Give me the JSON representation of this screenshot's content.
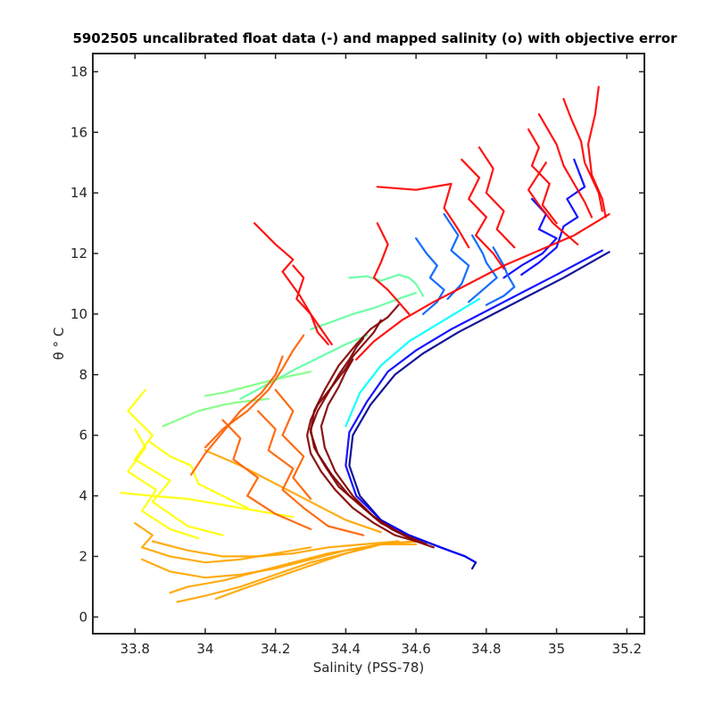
{
  "chart_data": {
    "type": "line",
    "title": "5902505 uncalibrated float data (-) and mapped salinity (o) with objective error",
    "xlabel": "Salinity (PSS-78)",
    "ylabel": "θ ° C",
    "xlim": [
      33.68,
      35.25
    ],
    "ylim": [
      -0.55,
      18.6
    ],
    "xticks": [
      33.8,
      34,
      34.2,
      34.4,
      34.6,
      34.8,
      35,
      35.2
    ],
    "xtick_labels": [
      "33.8",
      "34",
      "34.2",
      "34.4",
      "34.6",
      "34.8",
      "35",
      "35.2"
    ],
    "yticks": [
      0,
      2,
      4,
      6,
      8,
      10,
      12,
      14,
      16,
      18
    ],
    "ytick_labels": [
      "0",
      "2",
      "4",
      "6",
      "8",
      "10",
      "12",
      "14",
      "16",
      "18"
    ],
    "grid": false,
    "colormap": "jet",
    "colors": {
      "dark_blue": "#00008f",
      "blue": "#0000ff",
      "mid_blue": "#0060ff",
      "cyan": "#00ffff",
      "light_green": "#60ff9f",
      "green": "#7fff7f",
      "yellow": "#ffff00",
      "orange": "#ffa500",
      "dark_orange": "#ff6000",
      "red": "#ff0000",
      "dark_red": "#800000"
    },
    "series": [
      {
        "color": "#00008f",
        "x": [
          35.15,
          35.02,
          34.92,
          34.82,
          34.72,
          34.62,
          34.54,
          34.47,
          34.42,
          34.41,
          34.44,
          34.5,
          34.58,
          34.67,
          34.74,
          34.77,
          34.76
        ],
        "y": [
          12.05,
          11.2,
          10.6,
          10.0,
          9.4,
          8.7,
          8.0,
          7.0,
          6.0,
          5.0,
          4.0,
          3.2,
          2.7,
          2.3,
          2.0,
          1.8,
          1.6
        ]
      },
      {
        "color": "#0000ff",
        "x": [
          35.13,
          35.0,
          34.9,
          34.8,
          34.7,
          34.6,
          34.52,
          34.46,
          34.41,
          34.4,
          34.43,
          34.5,
          34.58,
          34.67,
          34.74,
          34.77
        ],
        "y": [
          12.1,
          11.3,
          10.7,
          10.1,
          9.5,
          8.8,
          8.1,
          7.1,
          6.1,
          5.0,
          4.0,
          3.2,
          2.7,
          2.3,
          2.0,
          1.8
        ]
      },
      {
        "color": "#0000ff",
        "x": [
          35.05,
          35.08,
          35.03,
          35.06,
          35.02,
          35.0,
          34.95,
          34.9
        ],
        "y": [
          15.1,
          14.2,
          13.8,
          13.2,
          12.9,
          12.2,
          11.7,
          11.3
        ]
      },
      {
        "color": "#0000ff",
        "x": [
          34.93,
          34.97,
          34.95,
          35.0,
          34.96,
          34.9,
          34.85
        ],
        "y": [
          13.8,
          13.3,
          12.8,
          12.5,
          12.0,
          11.6,
          11.2
        ]
      },
      {
        "color": "#0060ff",
        "x": [
          34.6,
          34.63,
          34.66,
          34.64,
          34.68,
          34.66,
          34.62
        ],
        "y": [
          12.5,
          12.0,
          11.6,
          11.2,
          10.8,
          10.4,
          10.0
        ]
      },
      {
        "color": "#0060ff",
        "x": [
          34.68,
          34.72,
          34.7,
          34.75,
          34.73,
          34.69
        ],
        "y": [
          13.3,
          12.6,
          12.1,
          11.6,
          11.0,
          10.5
        ]
      },
      {
        "color": "#0060ff",
        "x": [
          34.76,
          34.79,
          34.8,
          34.83,
          34.79,
          34.75
        ],
        "y": [
          12.6,
          12.0,
          11.7,
          11.2,
          10.8,
          10.4
        ]
      },
      {
        "color": "#0060ff",
        "x": [
          34.82,
          34.85,
          34.86,
          34.88,
          34.85,
          34.8
        ],
        "y": [
          12.2,
          11.6,
          11.3,
          10.9,
          10.6,
          10.3
        ]
      },
      {
        "color": "#00ffff",
        "x": [
          34.78,
          34.68,
          34.58,
          34.5,
          34.44,
          34.4
        ],
        "y": [
          10.5,
          9.8,
          9.1,
          8.3,
          7.4,
          6.3
        ]
      },
      {
        "color": "#60ff9f",
        "x": [
          34.41,
          34.46,
          34.5,
          34.55,
          34.58,
          34.6,
          34.62
        ],
        "y": [
          11.2,
          11.25,
          11.1,
          11.3,
          11.2,
          11.0,
          10.6
        ]
      },
      {
        "color": "#60ff9f",
        "x": [
          34.1,
          34.18,
          34.26,
          34.33,
          34.4,
          34.46
        ],
        "y": [
          7.2,
          7.7,
          8.2,
          8.6,
          9.0,
          9.3
        ]
      },
      {
        "color": "#60ff9f",
        "x": [
          34.3,
          34.35,
          34.42,
          34.48,
          34.55,
          34.6
        ],
        "y": [
          9.5,
          9.7,
          10.0,
          10.2,
          10.5,
          10.7
        ]
      },
      {
        "color": "#7fff7f",
        "x": [
          34.0,
          34.05,
          34.15,
          34.22,
          34.3
        ],
        "y": [
          7.3,
          7.4,
          7.7,
          7.9,
          8.1
        ]
      },
      {
        "color": "#7fff7f",
        "x": [
          33.88,
          33.92,
          33.98,
          34.05,
          34.1,
          34.18
        ],
        "y": [
          6.3,
          6.5,
          6.8,
          7.0,
          7.1,
          7.2
        ]
      },
      {
        "color": "#ffff00",
        "x": [
          33.83,
          33.78,
          33.85,
          33.8,
          33.9,
          33.85,
          33.95,
          34.05
        ],
        "y": [
          7.5,
          6.8,
          6.0,
          5.2,
          4.5,
          3.8,
          3.0,
          2.7
        ]
      },
      {
        "color": "#ffff00",
        "x": [
          33.8,
          33.83,
          33.78,
          33.86,
          33.82,
          33.9,
          33.98
        ],
        "y": [
          6.2,
          5.6,
          4.8,
          4.2,
          3.5,
          2.9,
          2.6
        ]
      },
      {
        "color": "#ffff00",
        "x": [
          33.76,
          33.85,
          33.95,
          34.05,
          34.15,
          34.25
        ],
        "y": [
          4.1,
          4.0,
          3.9,
          3.7,
          3.5,
          3.3
        ]
      },
      {
        "color": "#ffff00",
        "x": [
          33.84,
          33.9,
          33.96,
          33.98,
          34.05,
          34.12
        ],
        "y": [
          5.8,
          5.3,
          5.0,
          4.4,
          4.0,
          3.6
        ]
      },
      {
        "color": "#ffa500",
        "x": [
          33.82,
          33.9,
          34.0,
          34.1,
          34.2,
          34.3,
          34.4,
          34.5,
          34.6
        ],
        "y": [
          1.9,
          1.5,
          1.3,
          1.4,
          1.6,
          1.9,
          2.2,
          2.4,
          2.4
        ]
      },
      {
        "color": "#ffa500",
        "x": [
          33.9,
          33.95,
          34.05,
          34.15,
          34.25,
          34.35,
          34.45,
          34.55
        ],
        "y": [
          0.8,
          1.0,
          1.2,
          1.5,
          1.8,
          2.1,
          2.3,
          2.5
        ]
      },
      {
        "color": "#ffa500",
        "x": [
          33.92,
          34.0,
          34.1,
          34.2,
          34.3,
          34.4,
          34.5,
          34.6
        ],
        "y": [
          0.5,
          0.7,
          1.0,
          1.4,
          1.8,
          2.1,
          2.4,
          2.5
        ]
      },
      {
        "color": "#ffa500",
        "x": [
          33.8,
          33.85,
          33.82,
          33.9,
          34.0,
          34.1,
          34.2,
          34.3
        ],
        "y": [
          3.1,
          2.7,
          2.3,
          2.0,
          1.8,
          1.9,
          2.1,
          2.3
        ]
      },
      {
        "color": "#ffa500",
        "x": [
          34.03,
          34.1,
          34.2,
          34.3,
          34.4,
          34.5,
          34.6
        ],
        "y": [
          0.6,
          0.9,
          1.3,
          1.7,
          2.1,
          2.4,
          2.5
        ]
      },
      {
        "color": "#ffa500",
        "x": [
          33.85,
          33.95,
          34.05,
          34.15,
          34.25,
          34.35,
          34.45,
          34.55
        ],
        "y": [
          2.5,
          2.2,
          2.0,
          2.0,
          2.1,
          2.3,
          2.4,
          2.5
        ]
      },
      {
        "color": "#ffa500",
        "x": [
          34.0,
          34.1,
          34.2,
          34.3,
          34.4,
          34.5
        ],
        "y": [
          5.5,
          5.0,
          4.4,
          3.8,
          3.2,
          2.8
        ]
      },
      {
        "color": "#ff6000",
        "x": [
          34.28,
          34.25,
          34.22,
          34.18,
          34.12,
          34.05,
          34.0
        ],
        "y": [
          9.3,
          8.8,
          8.2,
          7.5,
          6.8,
          6.2,
          5.6
        ]
      },
      {
        "color": "#ff6000",
        "x": [
          34.22,
          34.2,
          34.16,
          34.1,
          34.05,
          34.0,
          33.96
        ],
        "y": [
          8.6,
          8.0,
          7.4,
          6.8,
          6.1,
          5.4,
          4.7
        ]
      },
      {
        "color": "#ff6000",
        "x": [
          34.2,
          34.25,
          34.22,
          34.28,
          34.25,
          34.3
        ],
        "y": [
          7.5,
          6.8,
          6.0,
          5.3,
          4.6,
          3.9
        ]
      },
      {
        "color": "#ff6000",
        "x": [
          34.15,
          34.2,
          34.18,
          34.25,
          34.22,
          34.28,
          34.35,
          34.45
        ],
        "y": [
          6.8,
          6.2,
          5.5,
          4.9,
          4.2,
          3.6,
          3.0,
          2.7
        ]
      },
      {
        "color": "#ff6000",
        "x": [
          34.05,
          34.1,
          34.08,
          34.15,
          34.12,
          34.2,
          34.3
        ],
        "y": [
          6.5,
          5.9,
          5.2,
          4.6,
          4.0,
          3.4,
          2.9
        ]
      },
      {
        "color": "#ff0000",
        "x": [
          34.14,
          34.2,
          34.25,
          34.22,
          34.27,
          34.3,
          34.32,
          34.35
        ],
        "y": [
          13.0,
          12.3,
          11.8,
          11.4,
          10.6,
          10.0,
          9.4,
          9.0
        ]
      },
      {
        "color": "#ff0000",
        "x": [
          34.25,
          34.28,
          34.26,
          34.3,
          34.33,
          34.36
        ],
        "y": [
          11.6,
          11.2,
          10.5,
          10.0,
          9.5,
          9.0
        ]
      },
      {
        "color": "#ff0000",
        "x": [
          34.49,
          34.52,
          34.5,
          34.48,
          34.52,
          34.55,
          34.58
        ],
        "y": [
          13.0,
          12.3,
          11.7,
          11.2,
          10.8,
          10.4,
          10.0
        ]
      },
      {
        "color": "#ff0000",
        "x": [
          34.49,
          34.6,
          34.7,
          34.68,
          34.72,
          34.75
        ],
        "y": [
          14.2,
          14.1,
          14.3,
          13.5,
          12.8,
          12.2
        ]
      },
      {
        "color": "#ff0000",
        "x": [
          34.73,
          34.78,
          34.75,
          34.8,
          34.77,
          34.82,
          34.85
        ],
        "y": [
          15.1,
          14.5,
          13.8,
          13.2,
          12.6,
          12.0,
          11.5
        ]
      },
      {
        "color": "#ff0000",
        "x": [
          34.78,
          34.82,
          34.8,
          34.85,
          34.83,
          34.88
        ],
        "y": [
          15.5,
          14.8,
          14.0,
          13.4,
          12.8,
          12.2
        ]
      },
      {
        "color": "#ff0000",
        "x": [
          34.92,
          34.95,
          34.93,
          34.98,
          34.96,
          35.0
        ],
        "y": [
          16.1,
          15.5,
          14.9,
          14.3,
          13.6,
          13.0
        ]
      },
      {
        "color": "#ff0000",
        "x": [
          34.95,
          35.0,
          35.02,
          35.05,
          35.08,
          35.1
        ],
        "y": [
          16.6,
          15.6,
          14.9,
          14.3,
          13.7,
          13.2
        ]
      },
      {
        "color": "#ff0000",
        "x": [
          35.02,
          35.04,
          35.07,
          35.08,
          35.12,
          35.13
        ],
        "y": [
          17.1,
          16.5,
          15.7,
          15.0,
          14.0,
          13.4
        ]
      },
      {
        "color": "#ff0000",
        "x": [
          35.12,
          35.11,
          35.09,
          35.1,
          35.13,
          35.14
        ],
        "y": [
          17.5,
          16.6,
          15.6,
          14.6,
          13.8,
          13.2
        ]
      },
      {
        "color": "#ff0000",
        "x": [
          34.97,
          34.92,
          34.95,
          34.99,
          35.03,
          35.06
        ],
        "y": [
          15.0,
          14.1,
          13.6,
          13.0,
          12.6,
          12.3
        ]
      },
      {
        "color": "#ff0000",
        "x": [
          35.15,
          35.05,
          34.95,
          34.85,
          34.75,
          34.65,
          34.56,
          34.48,
          34.43
        ],
        "y": [
          13.3,
          12.6,
          12.1,
          11.6,
          11.0,
          10.4,
          9.8,
          9.1,
          8.5
        ]
      },
      {
        "color": "#800000",
        "x": [
          34.5,
          34.48,
          34.45,
          34.42,
          34.4,
          34.36,
          34.32,
          34.3,
          34.29,
          34.3,
          34.33,
          34.37,
          34.42,
          34.48,
          34.54,
          34.6,
          34.65
        ],
        "y": [
          9.8,
          9.4,
          9.0,
          8.6,
          8.2,
          7.6,
          7.0,
          6.5,
          6.0,
          5.4,
          4.8,
          4.2,
          3.6,
          3.1,
          2.7,
          2.5,
          2.3
        ]
      },
      {
        "color": "#800000",
        "x": [
          34.45,
          34.43,
          34.41,
          34.38,
          34.35,
          34.32,
          34.3,
          34.31,
          34.34,
          34.38,
          34.44,
          34.5,
          34.57,
          34.63
        ],
        "y": [
          9.2,
          8.9,
          8.5,
          8.0,
          7.4,
          6.8,
          6.2,
          5.6,
          5.0,
          4.3,
          3.7,
          3.1,
          2.7,
          2.4
        ]
      },
      {
        "color": "#800000",
        "x": [
          34.55,
          34.52,
          34.47,
          34.43,
          34.38,
          34.34,
          34.31,
          34.3,
          34.32,
          34.36,
          34.41,
          34.47,
          34.53,
          34.6
        ],
        "y": [
          10.3,
          9.9,
          9.5,
          9.0,
          8.3,
          7.5,
          6.8,
          6.1,
          5.4,
          4.7,
          4.0,
          3.4,
          2.9,
          2.5
        ]
      },
      {
        "color": "#800000",
        "x": [
          34.42,
          34.4,
          34.38,
          34.35,
          34.33,
          34.34,
          34.37,
          34.42,
          34.48,
          34.55
        ],
        "y": [
          8.5,
          8.1,
          7.6,
          7.0,
          6.3,
          5.6,
          4.8,
          4.0,
          3.3,
          2.8
        ]
      }
    ]
  }
}
